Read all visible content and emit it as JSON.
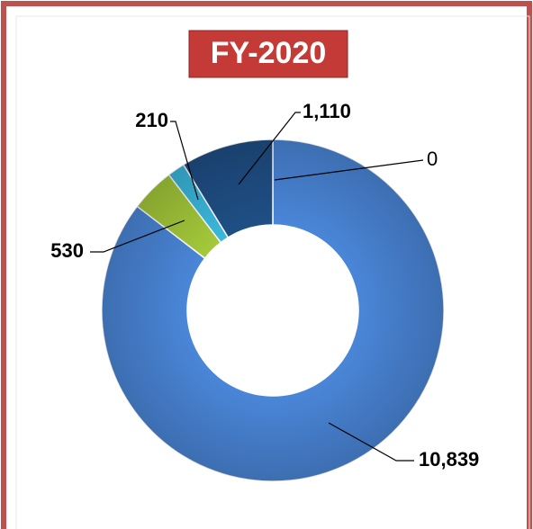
{
  "chart_data": {
    "type": "donut",
    "title": "FY-2020",
    "values": [
      0,
      10839,
      530,
      210,
      1110
    ],
    "value_labels": [
      "0",
      "10,839",
      "530",
      "210",
      "1,110"
    ],
    "colors": [
      "#4f86d6",
      "#4a86d8",
      "#a4c93a",
      "#3bb8dd",
      "#1f4f86"
    ]
  }
}
